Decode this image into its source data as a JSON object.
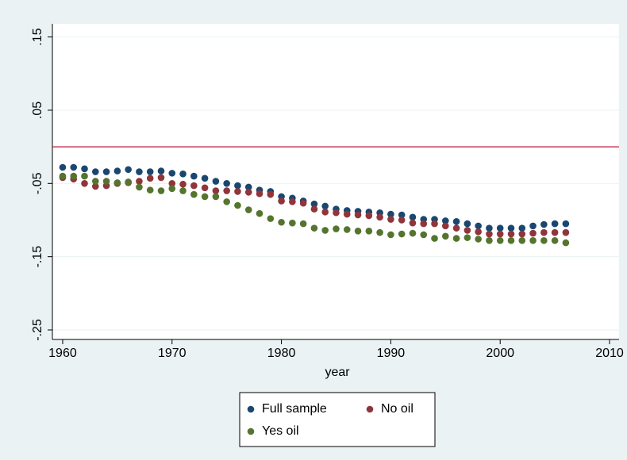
{
  "chart_data": {
    "type": "scatter",
    "x_label": "year",
    "x": [
      1960,
      1961,
      1962,
      1963,
      1964,
      1965,
      1966,
      1967,
      1968,
      1969,
      1970,
      1971,
      1972,
      1973,
      1974,
      1975,
      1976,
      1977,
      1978,
      1979,
      1980,
      1981,
      1982,
      1983,
      1984,
      1985,
      1986,
      1987,
      1988,
      1989,
      1990,
      1991,
      1992,
      1993,
      1994,
      1995,
      1996,
      1997,
      1998,
      1999,
      2000,
      2001,
      2002,
      2003,
      2004,
      2005,
      2006
    ],
    "series": [
      {
        "name": "Full sample",
        "color": "#1a476f",
        "values": [
          -0.028,
          -0.028,
          -0.03,
          -0.034,
          -0.034,
          -0.033,
          -0.031,
          -0.034,
          -0.034,
          -0.033,
          -0.036,
          -0.037,
          -0.04,
          -0.043,
          -0.047,
          -0.05,
          -0.053,
          -0.055,
          -0.059,
          -0.061,
          -0.068,
          -0.07,
          -0.074,
          -0.078,
          -0.081,
          -0.085,
          -0.087,
          -0.088,
          -0.089,
          -0.09,
          -0.092,
          -0.093,
          -0.096,
          -0.099,
          -0.099,
          -0.101,
          -0.102,
          -0.105,
          -0.108,
          -0.111,
          -0.111,
          -0.111,
          -0.111,
          -0.108,
          -0.106,
          -0.105,
          -0.105
        ]
      },
      {
        "name": "No oil",
        "color": "#90353b",
        "values": [
          -0.042,
          -0.044,
          -0.05,
          -0.054,
          -0.053,
          -0.05,
          -0.049,
          -0.047,
          -0.043,
          -0.042,
          -0.05,
          -0.051,
          -0.053,
          -0.056,
          -0.06,
          -0.06,
          -0.061,
          -0.062,
          -0.064,
          -0.065,
          -0.074,
          -0.075,
          -0.077,
          -0.085,
          -0.089,
          -0.09,
          -0.092,
          -0.093,
          -0.094,
          -0.096,
          -0.099,
          -0.1,
          -0.104,
          -0.105,
          -0.105,
          -0.108,
          -0.111,
          -0.114,
          -0.116,
          -0.119,
          -0.119,
          -0.119,
          -0.119,
          -0.118,
          -0.117,
          -0.117,
          -0.117
        ]
      },
      {
        "name": "Yes oil",
        "color": "#55752f",
        "values": [
          -0.04,
          -0.04,
          -0.04,
          -0.047,
          -0.047,
          -0.049,
          -0.048,
          -0.055,
          -0.059,
          -0.06,
          -0.057,
          -0.06,
          -0.065,
          -0.068,
          -0.068,
          -0.075,
          -0.08,
          -0.086,
          -0.091,
          -0.098,
          -0.103,
          -0.104,
          -0.105,
          -0.111,
          -0.114,
          -0.112,
          -0.113,
          -0.115,
          -0.115,
          -0.117,
          -0.12,
          -0.119,
          -0.118,
          -0.12,
          -0.125,
          -0.122,
          -0.125,
          -0.124,
          -0.126,
          -0.128,
          -0.128,
          -0.128,
          -0.128,
          -0.128,
          -0.128,
          -0.128,
          -0.131
        ]
      }
    ],
    "xlim": [
      1959.06,
      2010.87
    ],
    "xticks": [
      1960,
      1970,
      1980,
      1990,
      2000,
      2010
    ],
    "ylim": [
      -0.263,
      0.168
    ],
    "yticks": [
      {
        "value": -0.25,
        "label": "-.25"
      },
      {
        "value": -0.15,
        "label": "-.15"
      },
      {
        "value": -0.05,
        "label": "-.05"
      },
      {
        "value": 0.05,
        "label": ".05"
      },
      {
        "value": 0.15,
        "label": ".15"
      }
    ],
    "grid": true,
    "reference_line": {
      "value": 0,
      "color": "#c0143c"
    },
    "legend_position": "bottom"
  }
}
